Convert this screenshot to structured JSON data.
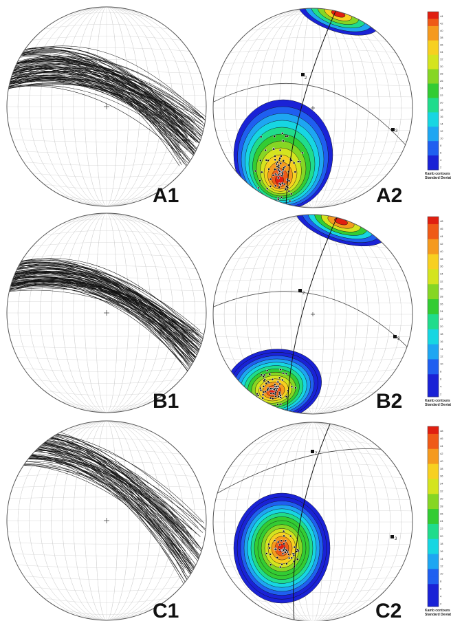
{
  "panels": [
    {
      "id": "A1",
      "label": "A1",
      "type": "great-circles"
    },
    {
      "id": "A2",
      "label": "A2",
      "type": "contoured-poles",
      "pole_labels": [
        "2",
        "3"
      ]
    },
    {
      "id": "B1",
      "label": "B1",
      "type": "great-circles"
    },
    {
      "id": "B2",
      "label": "B2",
      "type": "contoured-poles",
      "pole_labels": [
        "2",
        "3"
      ]
    },
    {
      "id": "C1",
      "label": "C1",
      "type": "great-circles"
    },
    {
      "id": "C2",
      "label": "C2",
      "type": "contoured-poles",
      "pole_labels": [
        "2",
        "3"
      ]
    }
  ],
  "colorbars": [
    {
      "row": "A",
      "title_line1": "Kamb contours in",
      "title_line2": "Standard Deviations",
      "ticks": [
        "44",
        "42",
        "40",
        "38",
        "36",
        "34",
        "32",
        "30",
        "28",
        "26",
        "24",
        "22",
        "20",
        "18",
        "16",
        "14",
        "12",
        "10",
        "8",
        "6",
        "4",
        "2"
      ]
    },
    {
      "row": "B",
      "title_line1": "Kamb contours in",
      "title_line2": "Standard Deviations",
      "ticks": [
        "48",
        "46",
        "44",
        "42",
        "40",
        "38",
        "36",
        "34",
        "32",
        "30",
        "28",
        "26",
        "24",
        "22",
        "20",
        "18",
        "16",
        "14",
        "12",
        "10",
        "8",
        "6",
        "4",
        "2"
      ]
    },
    {
      "row": "C",
      "title_line1": "Kamb contours in",
      "title_line2": "Standard Deviations",
      "ticks": [
        "48",
        "46",
        "44",
        "42",
        "40",
        "38",
        "36",
        "34",
        "32",
        "30",
        "28",
        "26",
        "24",
        "22",
        "20",
        "18",
        "16",
        "14",
        "12",
        "10",
        "8",
        "6",
        "4",
        "2"
      ]
    }
  ],
  "colors": {
    "colormap": [
      "#1a22d6",
      "#1f5ff0",
      "#1ea6f2",
      "#17d6e2",
      "#20dc8c",
      "#33cc33",
      "#86d624",
      "#d4e41f",
      "#f7d020",
      "#f59a1e",
      "#ef5a17",
      "#e01f10"
    ],
    "great_circle": "#111111",
    "net_grid": "#c8c8c8"
  }
}
